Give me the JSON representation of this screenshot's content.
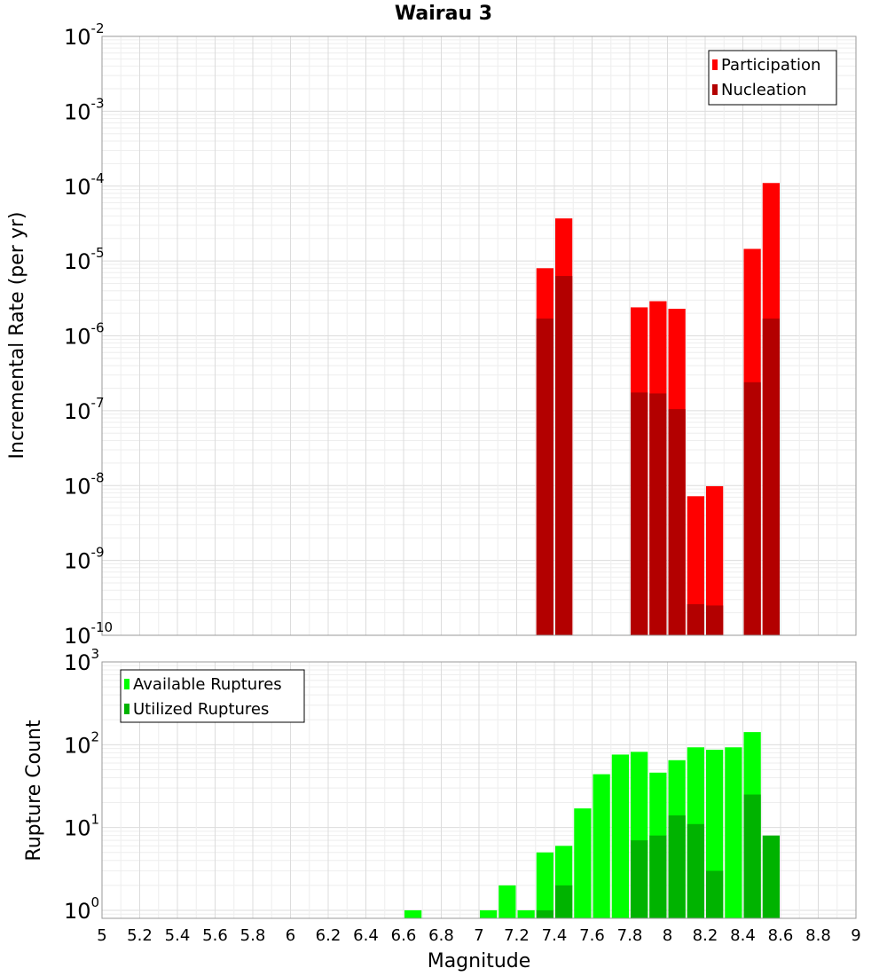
{
  "chart_data": [
    {
      "type": "bar",
      "title": "Wairau 3",
      "ylabel": "Incremental Rate (per yr)",
      "xlabel": "",
      "y_scale": "log",
      "ylim": [
        1e-10,
        0.01
      ],
      "xlim": [
        5,
        9
      ],
      "bin_width": 0.1,
      "grid": true,
      "legend_position": "top-right",
      "y_ticks": [
        {
          "base": "10",
          "exp": "-2",
          "value": 0.01
        },
        {
          "base": "10",
          "exp": "-3",
          "value": 0.001
        },
        {
          "base": "10",
          "exp": "-4",
          "value": 0.0001
        },
        {
          "base": "10",
          "exp": "-5",
          "value": 1e-05
        },
        {
          "base": "10",
          "exp": "-6",
          "value": 1e-06
        },
        {
          "base": "10",
          "exp": "-7",
          "value": 1e-07
        },
        {
          "base": "10",
          "exp": "-8",
          "value": 1e-08
        },
        {
          "base": "10",
          "exp": "-9",
          "value": 1e-09
        },
        {
          "base": "10",
          "exp": "-10",
          "value": 1e-10
        }
      ],
      "series": [
        {
          "name": "Participation",
          "color": "#ff0000",
          "points": [
            {
              "x": 7.35,
              "y": 8e-06
            },
            {
              "x": 7.45,
              "y": 3.7e-05
            },
            {
              "x": 7.85,
              "y": 2.4e-06
            },
            {
              "x": 7.95,
              "y": 2.9e-06
            },
            {
              "x": 8.05,
              "y": 2.3e-06
            },
            {
              "x": 8.15,
              "y": 7.2e-09
            },
            {
              "x": 8.25,
              "y": 9.8e-09
            },
            {
              "x": 8.45,
              "y": 1.45e-05
            },
            {
              "x": 8.55,
              "y": 0.00011
            }
          ]
        },
        {
          "name": "Nucleation",
          "color": "#b30000",
          "points": [
            {
              "x": 7.35,
              "y": 1.7e-06
            },
            {
              "x": 7.45,
              "y": 6.3e-06
            },
            {
              "x": 7.85,
              "y": 1.75e-07
            },
            {
              "x": 7.95,
              "y": 1.7e-07
            },
            {
              "x": 8.05,
              "y": 1.05e-07
            },
            {
              "x": 8.15,
              "y": 2.6e-10
            },
            {
              "x": 8.25,
              "y": 2.5e-10
            },
            {
              "x": 8.45,
              "y": 2.4e-07
            },
            {
              "x": 8.55,
              "y": 1.7e-06
            }
          ]
        }
      ]
    },
    {
      "type": "bar",
      "title": "",
      "ylabel": "Rupture Count",
      "xlabel": "Magnitude",
      "y_scale": "log",
      "ylim": [
        0.8,
        1000
      ],
      "xlim": [
        5,
        9
      ],
      "bin_width": 0.1,
      "grid": true,
      "legend_position": "top-left",
      "x_ticks": [
        "5",
        "5.2",
        "5.4",
        "5.6",
        "5.8",
        "6",
        "6.2",
        "6.4",
        "6.6",
        "6.8",
        "7",
        "7.2",
        "7.4",
        "7.6",
        "7.8",
        "8",
        "8.2",
        "8.4",
        "8.6",
        "8.8",
        "9"
      ],
      "y_ticks": [
        {
          "base": "10",
          "exp": "3",
          "value": 1000
        },
        {
          "base": "10",
          "exp": "2",
          "value": 100
        },
        {
          "base": "10",
          "exp": "1",
          "value": 10
        },
        {
          "base": "10",
          "exp": "0",
          "value": 1
        }
      ],
      "series": [
        {
          "name": "Available Ruptures",
          "color": "#00ff00",
          "points": [
            {
              "x": 6.65,
              "y": 1
            },
            {
              "x": 7.05,
              "y": 1
            },
            {
              "x": 7.15,
              "y": 2
            },
            {
              "x": 7.25,
              "y": 1
            },
            {
              "x": 7.35,
              "y": 5
            },
            {
              "x": 7.45,
              "y": 6
            },
            {
              "x": 7.55,
              "y": 17
            },
            {
              "x": 7.65,
              "y": 44
            },
            {
              "x": 7.75,
              "y": 76
            },
            {
              "x": 7.85,
              "y": 82
            },
            {
              "x": 7.95,
              "y": 46
            },
            {
              "x": 8.05,
              "y": 65
            },
            {
              "x": 8.15,
              "y": 93
            },
            {
              "x": 8.25,
              "y": 87
            },
            {
              "x": 8.35,
              "y": 93
            },
            {
              "x": 8.45,
              "y": 142
            }
          ]
        },
        {
          "name": "Utilized Ruptures",
          "color": "#00b300",
          "points": [
            {
              "x": 7.35,
              "y": 1
            },
            {
              "x": 7.45,
              "y": 2
            },
            {
              "x": 7.85,
              "y": 7
            },
            {
              "x": 7.95,
              "y": 8
            },
            {
              "x": 8.05,
              "y": 14
            },
            {
              "x": 8.15,
              "y": 11
            },
            {
              "x": 8.25,
              "y": 3
            },
            {
              "x": 8.45,
              "y": 25
            },
            {
              "x": 8.55,
              "y": 8
            }
          ]
        }
      ]
    }
  ]
}
